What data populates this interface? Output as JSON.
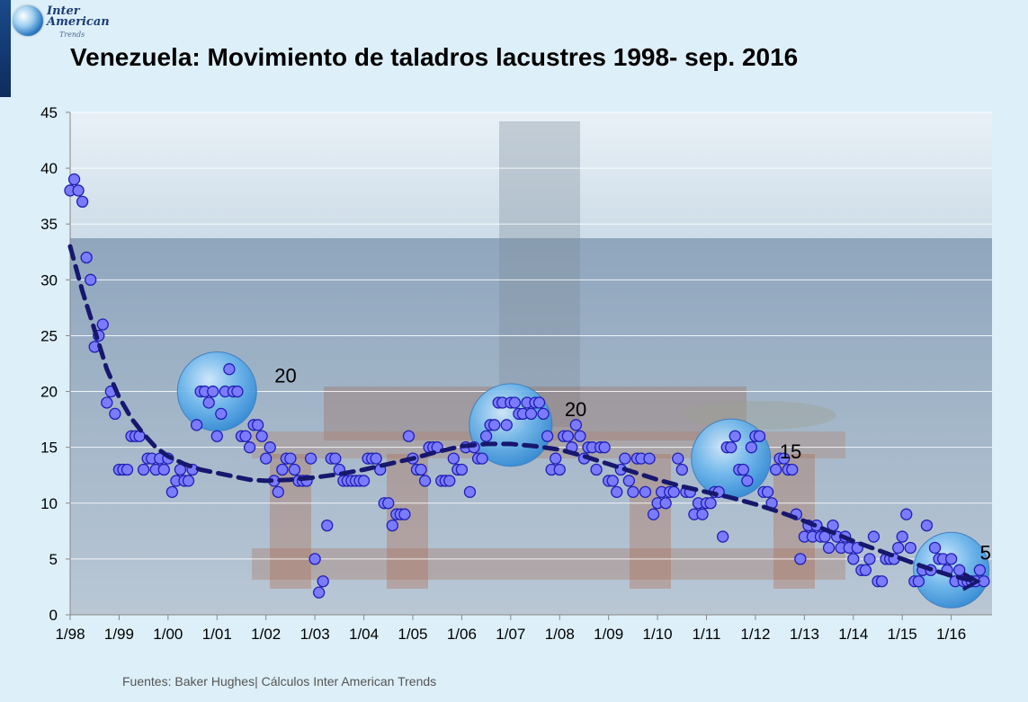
{
  "logo": {
    "line1": "Inter",
    "line2": "American",
    "line3": "Trends"
  },
  "source_note": "Fuentes: Baker Hughes| Cálculos Inter American Trends",
  "colors": {
    "point_fill": "#7b7bff",
    "point_stroke": "#1f1fb4",
    "trend": "#17176e",
    "bubble": "#4aa3e8"
  },
  "chart_data": {
    "type": "scatter",
    "title": "Venezuela: Movimiento de taladros lacustres 1998- sep. 2016",
    "xlabel": "",
    "ylabel": "",
    "xlim": [
      0,
      226
    ],
    "ylim": [
      0,
      45
    ],
    "y_ticks": [
      0,
      5,
      10,
      15,
      20,
      25,
      30,
      35,
      40,
      45
    ],
    "x_ticks": [
      {
        "label": "1/98",
        "x": 0
      },
      {
        "label": "1/99",
        "x": 12
      },
      {
        "label": "1/00",
        "x": 24
      },
      {
        "label": "1/01",
        "x": 36
      },
      {
        "label": "1/02",
        "x": 48
      },
      {
        "label": "1/03",
        "x": 60
      },
      {
        "label": "1/04",
        "x": 72
      },
      {
        "label": "1/05",
        "x": 84
      },
      {
        "label": "1/06",
        "x": 96
      },
      {
        "label": "1/07",
        "x": 108
      },
      {
        "label": "1/08",
        "x": 120
      },
      {
        "label": "1/09",
        "x": 132
      },
      {
        "label": "1/10",
        "x": 144
      },
      {
        "label": "1/11",
        "x": 156
      },
      {
        "label": "1/12",
        "x": 168
      },
      {
        "label": "1/13",
        "x": 180
      },
      {
        "label": "1/14",
        "x": 192
      },
      {
        "label": "1/15",
        "x": 204
      },
      {
        "label": "1/16",
        "x": 216
      }
    ],
    "grid": true,
    "series": [
      {
        "x": [
          0,
          1,
          2,
          3,
          4,
          5,
          6,
          7,
          8,
          9,
          10,
          11,
          12,
          13,
          14,
          15,
          16,
          17,
          18,
          19,
          20,
          21,
          22,
          23,
          24,
          25,
          26,
          27,
          28,
          29,
          30,
          31,
          32,
          33,
          34,
          35,
          36,
          37,
          38,
          39,
          40,
          41,
          42,
          43,
          44,
          45,
          46,
          47,
          48,
          49,
          50,
          51,
          52,
          53,
          54,
          55,
          56,
          57,
          58,
          59,
          60,
          61,
          62,
          63,
          64,
          65,
          66,
          67,
          68,
          69,
          70,
          71,
          72,
          73,
          74,
          75,
          76,
          77,
          78,
          79,
          80,
          81,
          82,
          83,
          84,
          85,
          86,
          87,
          88,
          89,
          90,
          91,
          92,
          93,
          94,
          95,
          96,
          97,
          98,
          99,
          100,
          101,
          102,
          103,
          104,
          105,
          106,
          107,
          108,
          109,
          110,
          111,
          112,
          113,
          114,
          115,
          116,
          117,
          118,
          119,
          120,
          121,
          122,
          123,
          124,
          125,
          126,
          127,
          128,
          129,
          130,
          131,
          132,
          133,
          134,
          135,
          136,
          137,
          138,
          139,
          140,
          141,
          142,
          143,
          144,
          145,
          146,
          147,
          148,
          149,
          150,
          151,
          152,
          153,
          154,
          155,
          156,
          157,
          158,
          159,
          160,
          161,
          162,
          163,
          164,
          165,
          166,
          167,
          168,
          169,
          170,
          171,
          172,
          173,
          174,
          175,
          176,
          177,
          178,
          179,
          180,
          181,
          182,
          183,
          184,
          185,
          186,
          187,
          188,
          189,
          190,
          191,
          192,
          193,
          194,
          195,
          196,
          197,
          198,
          199,
          200,
          201,
          202,
          203,
          204,
          205,
          206,
          207,
          208,
          209,
          210,
          211,
          212,
          213,
          214,
          215,
          216,
          217,
          218,
          219,
          220,
          221,
          222,
          223,
          224
        ],
        "y": [
          38,
          39,
          38,
          37,
          32,
          30,
          24,
          25,
          26,
          19,
          20,
          18,
          13,
          13,
          13,
          16,
          16,
          16,
          13,
          14,
          14,
          13,
          14,
          13,
          14,
          11,
          12,
          13,
          12,
          12,
          13,
          17,
          20,
          20,
          19,
          20,
          16,
          18,
          20,
          22,
          20,
          20,
          16,
          16,
          15,
          17,
          17,
          16,
          14,
          15,
          12,
          11,
          13,
          14,
          14,
          13,
          12,
          12,
          12,
          14,
          5,
          2,
          3,
          8,
          14,
          14,
          13,
          12,
          12,
          12,
          12,
          12,
          12,
          14,
          14,
          14,
          13,
          10,
          10,
          8,
          9,
          9,
          9,
          16,
          14,
          13,
          13,
          12,
          15,
          15,
          15,
          12,
          12,
          12,
          14,
          13,
          13,
          15,
          11,
          15,
          14,
          14,
          16,
          17,
          17,
          19,
          19,
          17,
          19,
          19,
          18,
          18,
          19,
          18,
          19,
          19,
          18,
          16,
          13,
          14,
          13,
          16,
          16,
          15,
          17,
          16,
          14,
          15,
          15,
          13,
          15,
          15,
          12,
          12,
          11,
          13,
          14,
          12,
          11,
          14,
          14,
          11,
          14,
          9,
          10,
          11,
          10,
          11,
          11,
          14,
          13,
          11,
          11,
          9,
          10,
          9,
          10,
          10,
          11,
          11,
          7,
          15,
          15,
          16,
          13,
          13,
          12,
          15,
          16,
          16,
          11,
          11,
          10,
          13,
          14,
          14,
          13,
          13,
          9,
          5,
          7,
          8,
          7,
          8,
          7,
          7,
          6,
          8,
          7,
          6,
          7,
          6,
          5,
          6,
          4,
          4,
          5,
          7,
          3,
          3,
          5,
          5,
          5,
          6,
          7,
          9,
          6,
          3,
          3,
          4,
          8,
          4,
          6,
          5,
          5,
          4,
          5,
          3,
          4,
          3,
          3,
          3,
          3,
          4,
          3
        ],
        "point_color": "#7b7bff"
      }
    ],
    "trend_line": {
      "style": "dashed",
      "x": [
        0,
        3,
        6,
        9,
        12,
        15,
        18,
        21,
        24,
        28,
        32,
        36,
        40,
        44,
        48,
        54,
        60,
        66,
        72,
        78,
        84,
        90,
        96,
        102,
        108,
        114,
        120,
        126,
        132,
        138,
        144,
        150,
        156,
        162,
        168,
        174,
        180,
        186,
        192,
        198,
        204,
        210,
        216,
        222
      ],
      "y": [
        33,
        29,
        25.5,
        22,
        19.5,
        17.6,
        16.2,
        15,
        14.2,
        13.5,
        13,
        12.7,
        12.4,
        12.1,
        12,
        12.1,
        12.3,
        12.6,
        13,
        13.5,
        14,
        14.6,
        15.1,
        15.3,
        15.3,
        15.1,
        14.8,
        14.2,
        13.5,
        12.8,
        12.1,
        11.5,
        11,
        10.5,
        9.9,
        9.2,
        8.4,
        7.5,
        6.6,
        5.8,
        5,
        4.2,
        3.5,
        3
      ]
    },
    "annotations": [
      {
        "label": "20",
        "bubble_center": {
          "x": 36,
          "y": 20
        }
      },
      {
        "label": "20",
        "bubble_center": {
          "x": 108,
          "y": 17
        }
      },
      {
        "label": "15",
        "bubble_center": {
          "x": 162,
          "y": 14
        }
      },
      {
        "label": "5",
        "bubble_center": {
          "x": 216,
          "y": 4
        }
      }
    ]
  }
}
